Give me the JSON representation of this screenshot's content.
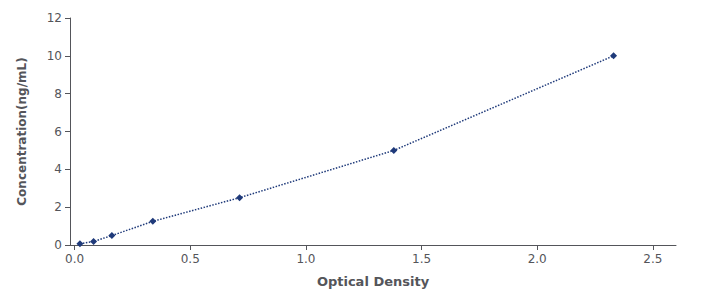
{
  "chart_data": {
    "type": "line",
    "x": [
      0.023,
      0.082,
      0.161,
      0.338,
      0.713,
      1.38,
      2.33
    ],
    "values": [
      0.063,
      0.188,
      0.5,
      1.25,
      2.5,
      5.0,
      10.0
    ],
    "color": "#1F3A7A",
    "marker": "diamond",
    "line_style": "dotted",
    "xlabel": "Optical Density",
    "ylabel": "Concentration(ng/mL)",
    "xlim": [
      -0.02,
      2.6
    ],
    "xticks": [
      {
        "value": 0,
        "label": "0.0"
      },
      0.5,
      {
        "value": 1,
        "label": "1.0"
      },
      1.5,
      {
        "value": 2,
        "label": "2.0"
      },
      2.5
    ],
    "ylim": [
      0,
      12
    ],
    "yticks": [
      0,
      2,
      4,
      6,
      8,
      10,
      12
    ],
    "grid": false
  }
}
